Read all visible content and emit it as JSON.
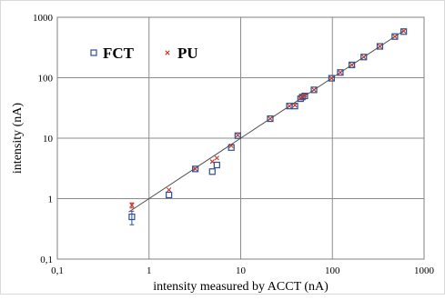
{
  "chart_data": {
    "type": "scatter",
    "title": "",
    "xlabel": "intensity measured by ACCT (nA)",
    "ylabel": "intensity (nA)",
    "x_scale": "log",
    "y_scale": "log",
    "xlim": [
      0.1,
      1000
    ],
    "ylim": [
      0.1,
      1000
    ],
    "x_ticks": [
      "0,1",
      "1",
      "10",
      "100",
      "1000"
    ],
    "y_ticks": [
      "0,1",
      "1",
      "10",
      "100",
      "1000"
    ],
    "grid": true,
    "legend": {
      "placement": "top-left",
      "entries": [
        "FCT",
        "PU"
      ]
    },
    "reference_line": {
      "type": "y=x"
    },
    "series": [
      {
        "name": "FCT",
        "marker": "open-square",
        "color": "#2e4f8f",
        "points": [
          {
            "x": 0.65,
            "y": 0.5,
            "err_low": 0.37,
            "err_high": 0.62
          },
          {
            "x": 1.65,
            "y": 1.15
          },
          {
            "x": 3.2,
            "y": 3.1
          },
          {
            "x": 4.9,
            "y": 2.8
          },
          {
            "x": 5.5,
            "y": 3.6
          },
          {
            "x": 7.9,
            "y": 7.0
          },
          {
            "x": 9.3,
            "y": 11.0
          },
          {
            "x": 21,
            "y": 21
          },
          {
            "x": 34,
            "y": 34
          },
          {
            "x": 39,
            "y": 34
          },
          {
            "x": 45,
            "y": 45
          },
          {
            "x": 47,
            "y": 48
          },
          {
            "x": 50,
            "y": 50
          },
          {
            "x": 63,
            "y": 63
          },
          {
            "x": 98,
            "y": 98
          },
          {
            "x": 122,
            "y": 122
          },
          {
            "x": 163,
            "y": 163
          },
          {
            "x": 220,
            "y": 220
          },
          {
            "x": 330,
            "y": 330
          },
          {
            "x": 480,
            "y": 480
          },
          {
            "x": 600,
            "y": 580
          }
        ]
      },
      {
        "name": "PU",
        "marker": "x",
        "color": "#c0392b",
        "points": [
          {
            "x": 0.65,
            "y": 0.78,
            "err_low": 0.7,
            "err_high": 0.85
          },
          {
            "x": 1.65,
            "y": 1.4
          },
          {
            "x": 3.2,
            "y": 3.1
          },
          {
            "x": 4.9,
            "y": 4.1
          },
          {
            "x": 5.5,
            "y": 4.7
          },
          {
            "x": 7.9,
            "y": 7.5
          },
          {
            "x": 9.3,
            "y": 11.2
          },
          {
            "x": 21,
            "y": 21
          },
          {
            "x": 34,
            "y": 34
          },
          {
            "x": 39,
            "y": 35
          },
          {
            "x": 45,
            "y": 46
          },
          {
            "x": 47,
            "y": 49
          },
          {
            "x": 50,
            "y": 51
          },
          {
            "x": 63,
            "y": 63
          },
          {
            "x": 98,
            "y": 98
          },
          {
            "x": 122,
            "y": 122
          },
          {
            "x": 163,
            "y": 163
          },
          {
            "x": 220,
            "y": 220
          },
          {
            "x": 330,
            "y": 330
          },
          {
            "x": 480,
            "y": 480
          },
          {
            "x": 600,
            "y": 590
          }
        ]
      }
    ]
  }
}
